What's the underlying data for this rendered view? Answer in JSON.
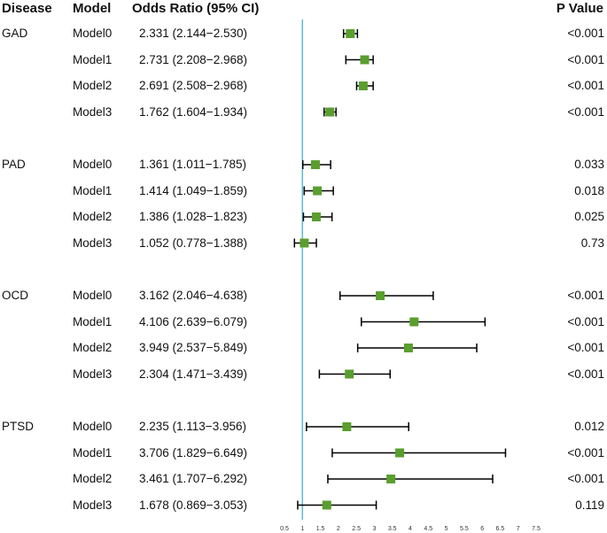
{
  "headers": {
    "disease": "Disease",
    "model": "Model",
    "or": "Odds Ratio (95% CI)",
    "p": "P Value"
  },
  "colors": {
    "reference_line": "#5bbcd0",
    "marker": "#5a9e2f",
    "whisker": "#000000"
  },
  "chart_data": {
    "type": "forest",
    "xlim": [
      0.5,
      7.5
    ],
    "reference_value": 1,
    "xticks": [
      "0.5",
      "1",
      "1.5",
      "2",
      "2.5",
      "3",
      "3.5",
      "4",
      "4.5",
      "5",
      "5.5",
      "6",
      "6.5",
      "7",
      "7.5"
    ],
    "groups": [
      {
        "disease": "GAD",
        "rows": [
          {
            "model": "Model0",
            "or": 2.331,
            "lo": 2.144,
            "hi": 2.53,
            "label": "2.331 (2.144−2.530)",
            "p": "<0.001"
          },
          {
            "model": "Model1",
            "or": 2.731,
            "lo": 2.208,
            "hi": 2.968,
            "label": "2.731 (2.208−2.968)",
            "p": "<0.001"
          },
          {
            "model": "Model2",
            "or": 2.691,
            "lo": 2.508,
            "hi": 2.968,
            "label": "2.691 (2.508−2.968)",
            "p": "<0.001"
          },
          {
            "model": "Model3",
            "or": 1.762,
            "lo": 1.604,
            "hi": 1.934,
            "label": "1.762 (1.604−1.934)",
            "p": "<0.001"
          }
        ]
      },
      {
        "disease": "PAD",
        "rows": [
          {
            "model": "Model0",
            "or": 1.361,
            "lo": 1.011,
            "hi": 1.785,
            "label": "1.361 (1.011−1.785)",
            "p": "0.033"
          },
          {
            "model": "Model1",
            "or": 1.414,
            "lo": 1.049,
            "hi": 1.859,
            "label": "1.414 (1.049−1.859)",
            "p": "0.018"
          },
          {
            "model": "Model2",
            "or": 1.386,
            "lo": 1.028,
            "hi": 1.823,
            "label": "1.386 (1.028−1.823)",
            "p": "0.025"
          },
          {
            "model": "Model3",
            "or": 1.052,
            "lo": 0.778,
            "hi": 1.388,
            "label": "1.052 (0.778−1.388)",
            "p": "0.73"
          }
        ]
      },
      {
        "disease": "OCD",
        "rows": [
          {
            "model": "Model0",
            "or": 3.162,
            "lo": 2.046,
            "hi": 4.638,
            "label": "3.162 (2.046−4.638)",
            "p": "<0.001"
          },
          {
            "model": "Model1",
            "or": 4.106,
            "lo": 2.639,
            "hi": 6.079,
            "label": "4.106 (2.639−6.079)",
            "p": "<0.001"
          },
          {
            "model": "Model2",
            "or": 3.949,
            "lo": 2.537,
            "hi": 5.849,
            "label": "3.949 (2.537−5.849)",
            "p": "<0.001"
          },
          {
            "model": "Model3",
            "or": 2.304,
            "lo": 1.471,
            "hi": 3.439,
            "label": "2.304 (1.471−3.439)",
            "p": "<0.001"
          }
        ]
      },
      {
        "disease": "PTSD",
        "rows": [
          {
            "model": "Model0",
            "or": 2.235,
            "lo": 1.113,
            "hi": 3.956,
            "label": "2.235 (1.113−3.956)",
            "p": "0.012"
          },
          {
            "model": "Model1",
            "or": 3.706,
            "lo": 1.829,
            "hi": 6.649,
            "label": "3.706 (1.829−6.649)",
            "p": "<0.001"
          },
          {
            "model": "Model2",
            "or": 3.461,
            "lo": 1.707,
            "hi": 6.292,
            "label": "3.461 (1.707−6.292)",
            "p": "<0.001"
          },
          {
            "model": "Model3",
            "or": 1.678,
            "lo": 0.869,
            "hi": 3.053,
            "label": "1.678 (0.869−3.053)",
            "p": "0.119"
          }
        ]
      }
    ]
  }
}
